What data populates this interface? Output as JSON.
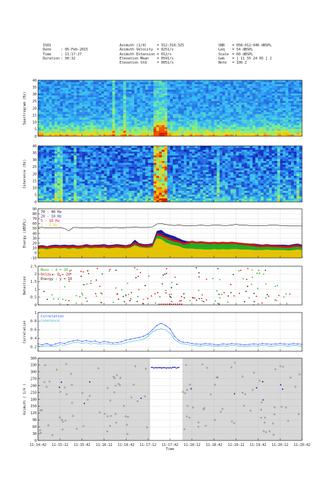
{
  "header": {
    "left": [
      {
        "k": "IS01",
        "v": ""
      },
      {
        "k": "Date",
        "v": ": 05-Feb-2015"
      },
      {
        "k": "Time",
        "v": ": 11:17:27"
      },
      {
        "k": "Duration",
        "v": ": 00:32"
      }
    ],
    "mid": [
      {
        "k": "Azimuth (1/4)",
        "v": "= 312:318:325"
      },
      {
        "k": "Azimuth Velocity",
        "v": "= 0251/s"
      },
      {
        "k": "Azimuth Extension",
        "v": "= 012/s"
      },
      {
        "k": "Elevation Mean",
        "v": "= 0591/s"
      },
      {
        "k": "Elevation Std",
        "v": "= 0051/s"
      }
    ],
    "right": [
      {
        "k": "SNR",
        "v": "= 058:012:046 dBSPL"
      },
      {
        "k": "Leq",
        "v": "= 54 dBSPL"
      },
      {
        "k": "Scale",
        "v": "= 60 dBSPL"
      },
      {
        "k": "Gab",
        "v": "= [ 11 55 24 05 ] 2"
      },
      {
        "k": "Note",
        "v": "= 100 Z"
      }
    ]
  },
  "colors": {
    "frame": "#222222",
    "grid": "#9a9a9a",
    "panel_bg": "#ffffff",
    "gray_bg": "#d8d8d8",
    "spec_low": "#1a3fd0",
    "spec_mid": "#33b9ff",
    "spec_hi": "#ffd200",
    "spec_peak": "#d41e00",
    "band_70_40": "#111111",
    "band_20_10": "#1a1a9a",
    "band_10_5": "#d41010",
    "band_5_1": "#22aa22",
    "band_fill": "#e6c400",
    "corr": "#3355ff",
    "coh": "#40b8d0",
    "az_dot": "#444444",
    "az_sel": "#2020c0"
  },
  "x_ticks": [
    "11:14:42",
    "11:15:12",
    "11:15:42",
    "11:16:12",
    "11:16:42",
    "11:17:12",
    "11:17:42",
    "11:18:12",
    "11:18:42",
    "11:19:12",
    "11:19:42",
    "11:20:12",
    "11:20:42"
  ],
  "xlabel": "Time",
  "chart_data": [
    {
      "type": "heatmap",
      "name": "spectrogram",
      "ylabel": "Spectrogram (Hz)",
      "yticks": [
        0,
        5,
        10,
        15,
        20,
        25,
        30,
        35,
        40
      ],
      "ylim": [
        0,
        40
      ],
      "event_window": [
        "11:17:12",
        "11:17:42"
      ],
      "description_levels": [
        "low",
        "mid",
        "high",
        "peak"
      ]
    },
    {
      "type": "heatmap",
      "name": "coherence",
      "ylabel": "Coherence (Hz)",
      "yticks": [
        0,
        5,
        10,
        15,
        20,
        25,
        30,
        35,
        40
      ],
      "ylim": [
        0,
        40
      ]
    },
    {
      "type": "area",
      "name": "energy",
      "ylabel": "Energy (dBSPL)",
      "yticks": [
        -10,
        0,
        10,
        20,
        30,
        40,
        50,
        60,
        70,
        80,
        90
      ],
      "ylim": [
        -10,
        90
      ],
      "legend": [
        "70 - 40 Hz",
        "20 - 10 Hz",
        "5 - 10 Hz",
        "1 - 5 Hz"
      ],
      "legend_position": "top-left",
      "series": [
        {
          "name": "70 - 40 Hz",
          "values": [
            52,
            52,
            51,
            51,
            51,
            52,
            50,
            45,
            52,
            52,
            51,
            51,
            51,
            52,
            52,
            51,
            51,
            52,
            52,
            51,
            52,
            52,
            53,
            52,
            52,
            52,
            53,
            59,
            60,
            58,
            57,
            56,
            57,
            56,
            55,
            56,
            56,
            57,
            56,
            56,
            57,
            57,
            56,
            56,
            57,
            58,
            57,
            57,
            56,
            56,
            56,
            56,
            56,
            57,
            57,
            56,
            56,
            55,
            55,
            55,
            55
          ]
        },
        {
          "name": "20 - 10 Hz",
          "values": [
            15,
            16,
            14,
            16,
            17,
            16,
            17,
            16,
            17,
            15,
            16,
            18,
            16,
            17,
            17,
            18,
            16,
            17,
            18,
            17,
            16,
            18,
            27,
            20,
            18,
            18,
            20,
            45,
            47,
            40,
            37,
            34,
            30,
            26,
            24,
            23,
            22,
            22,
            21,
            20,
            21,
            21,
            22,
            21,
            22,
            21,
            21,
            20,
            19,
            19,
            18,
            17,
            18,
            17,
            17,
            17,
            17,
            16,
            18,
            19,
            17
          ]
        },
        {
          "name": "5 - 10 Hz",
          "values": [
            14,
            14,
            13,
            14,
            15,
            14,
            15,
            14,
            15,
            14,
            15,
            16,
            15,
            16,
            15,
            16,
            14,
            15,
            16,
            15,
            15,
            16,
            22,
            18,
            16,
            16,
            18,
            40,
            38,
            34,
            30,
            27,
            25,
            21,
            22,
            25,
            23,
            24,
            23,
            22,
            23,
            22,
            23,
            22,
            23,
            22,
            21,
            20,
            19,
            18,
            16,
            16,
            17,
            16,
            16,
            15,
            15,
            14,
            16,
            17,
            15
          ]
        },
        {
          "name": "1 - 5 Hz",
          "values": [
            8,
            9,
            7,
            9,
            10,
            9,
            10,
            8,
            10,
            8,
            9,
            11,
            9,
            10,
            10,
            11,
            9,
            10,
            11,
            10,
            9,
            11,
            15,
            12,
            11,
            10,
            12,
            30,
            28,
            22,
            18,
            16,
            14,
            10,
            9,
            9,
            8,
            8,
            7,
            7,
            8,
            7,
            8,
            7,
            8,
            8,
            7,
            7,
            7,
            6,
            6,
            6,
            7,
            6,
            6,
            6,
            6,
            5,
            6,
            7,
            6
          ]
        }
      ]
    },
    {
      "type": "scatter",
      "name": "detection",
      "ylabel": "Detection",
      "yticks": [
        0,
        0.5,
        1,
        1.5,
        2,
        2.5
      ],
      "ylim": [
        0,
        2.5
      ],
      "legend": [
        "Mono  : A = 20",
        "Delay : B = 20",
        "Energy : y = 10"
      ],
      "legend_colors": [
        "#22aa22",
        "#d41010",
        "#222222"
      ],
      "legend_position": "top-left"
    },
    {
      "type": "line",
      "name": "correlation",
      "ylabel": "Correlation",
      "yticks": [
        0.2,
        0.4,
        0.6,
        0.8,
        1
      ],
      "ylim": [
        0.1,
        1
      ],
      "legend": [
        "Correlation",
        "Coherence"
      ],
      "legend_position": "top-left",
      "series": [
        {
          "name": "Correlation",
          "values": [
            0.27,
            0.25,
            0.28,
            0.24,
            0.27,
            0.3,
            0.28,
            0.32,
            0.34,
            0.36,
            0.33,
            0.35,
            0.32,
            0.34,
            0.3,
            0.33,
            0.31,
            0.29,
            0.3,
            0.32,
            0.36,
            0.38,
            0.4,
            0.42,
            0.45,
            0.5,
            0.6,
            0.7,
            0.75,
            0.7,
            0.62,
            0.45,
            0.35,
            0.31,
            0.3,
            0.28,
            0.27,
            0.26,
            0.28,
            0.27,
            0.26,
            0.25,
            0.27,
            0.26,
            0.28,
            0.27,
            0.26,
            0.25,
            0.26,
            0.27,
            0.26,
            0.28,
            0.27,
            0.26,
            0.27,
            0.28,
            0.27,
            0.26,
            0.28,
            0.27,
            0.26
          ]
        },
        {
          "name": "Coherence",
          "values": [
            0.22,
            0.21,
            0.23,
            0.22,
            0.22,
            0.25,
            0.24,
            0.27,
            0.3,
            0.31,
            0.28,
            0.3,
            0.27,
            0.29,
            0.26,
            0.28,
            0.27,
            0.25,
            0.26,
            0.27,
            0.3,
            0.32,
            0.34,
            0.36,
            0.38,
            0.45,
            0.55,
            0.6,
            0.62,
            0.6,
            0.52,
            0.38,
            0.3,
            0.27,
            0.25,
            0.24,
            0.23,
            0.22,
            0.24,
            0.23,
            0.22,
            0.22,
            0.23,
            0.22,
            0.24,
            0.23,
            0.22,
            0.21,
            0.22,
            0.23,
            0.22,
            0.24,
            0.23,
            0.22,
            0.23,
            0.24,
            0.23,
            0.22,
            0.24,
            0.23,
            0.22
          ]
        }
      ]
    },
    {
      "type": "scatter",
      "name": "azimuth",
      "ylabel": "Azimuth ( 1/4 )",
      "yticks": [
        0,
        30,
        60,
        90,
        120,
        150,
        180,
        210,
        240,
        270,
        300,
        330,
        360
      ],
      "ylim": [
        0,
        360
      ],
      "selected_window": [
        "11:17:12",
        "11:17:42"
      ],
      "selected_level": 318
    }
  ]
}
